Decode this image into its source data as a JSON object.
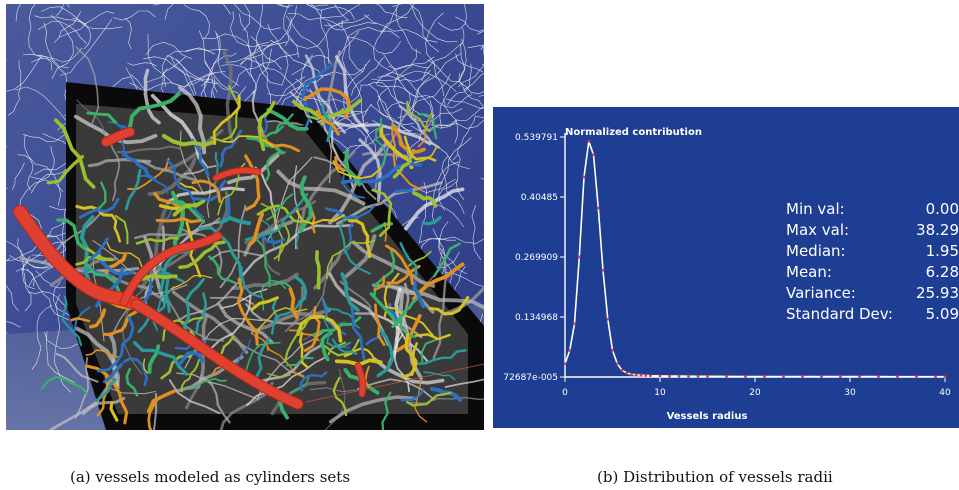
{
  "figure": {
    "caption_a": "(a) vessels modeled as cylinders sets",
    "caption_b": "(b) Distribution of vessels radii"
  },
  "chart_data": {
    "type": "line",
    "title": "Normalized contribution",
    "xlabel": "Vessels radius",
    "ylabel": "",
    "x_ticks": [
      0,
      10,
      20,
      30,
      40
    ],
    "y_tick_labels": [
      "72687e-005",
      "0.134968",
      "0.269909",
      "0.40485",
      "0.539791"
    ],
    "y_tick_values": [
      0.0,
      0.134968,
      0.269909,
      0.40485,
      0.539791
    ],
    "xlim": [
      0,
      40
    ],
    "ylim": [
      0,
      0.539791
    ],
    "grid": false,
    "series": [
      {
        "x": [
          0.0,
          0.5,
          1.0,
          1.5,
          2.0,
          2.5,
          3.0,
          3.5,
          4.0,
          4.5,
          5.0,
          5.5,
          6.0,
          6.5,
          7.0,
          7.5,
          8.0,
          8.5,
          9.0,
          10.0,
          11.0,
          12.0,
          13.0,
          14.0,
          15.0,
          17.0,
          19.0,
          21.0,
          23.0,
          25.0,
          27.0,
          29.0,
          31.0,
          33.0,
          35.0,
          37.0,
          39.0,
          40.0
        ],
        "y": [
          0.03,
          0.06,
          0.12,
          0.27,
          0.45,
          0.53,
          0.5,
          0.38,
          0.24,
          0.13,
          0.06,
          0.03,
          0.015,
          0.009,
          0.006,
          0.005,
          0.004,
          0.0035,
          0.003,
          0.0025,
          0.002,
          0.002,
          0.0018,
          0.0016,
          0.0015,
          0.0013,
          0.0012,
          0.0011,
          0.001,
          0.001,
          0.0009,
          0.0009,
          0.0008,
          0.0008,
          0.0007,
          0.0007,
          0.0006,
          0.0006
        ]
      }
    ],
    "stats": [
      {
        "label": "Min val:",
        "value": "0.00"
      },
      {
        "label": "Max val:",
        "value": "38.29"
      },
      {
        "label": "Median:",
        "value": "1.95"
      },
      {
        "label": "Mean:",
        "value": "6.28"
      },
      {
        "label": "Variance:",
        "value": "25.93"
      },
      {
        "label": "Standard Dev:",
        "value": "5.09"
      }
    ]
  }
}
